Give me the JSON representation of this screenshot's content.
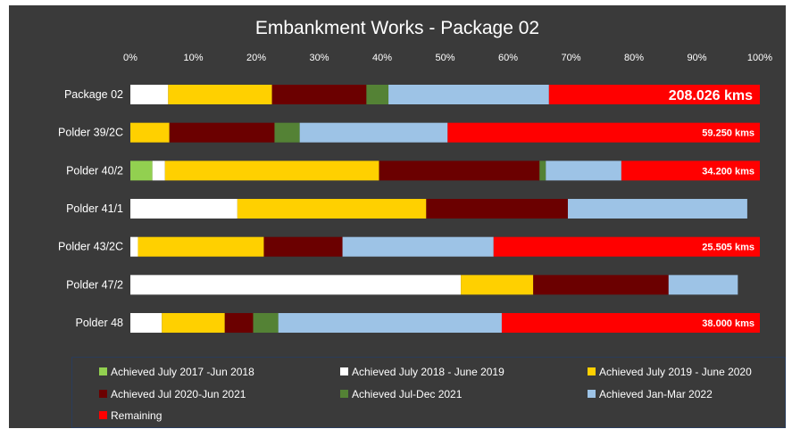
{
  "chart_data": {
    "type": "bar",
    "orientation": "horizontal",
    "stacked": true,
    "title": "Embankment Works - Package 02",
    "xlabel": "",
    "ylabel": "",
    "xlim": [
      0,
      100
    ],
    "x_ticks": [
      "0%",
      "10%",
      "20%",
      "30%",
      "40%",
      "50%",
      "60%",
      "70%",
      "80%",
      "90%",
      "100%"
    ],
    "grid": false,
    "legend_position": "bottom",
    "categories": [
      "Package 02",
      "Polder 39/2C",
      "Polder 40/2",
      "Polder 41/1",
      "Polder 43/2C",
      "Polder 47/2",
      "Polder 48"
    ],
    "series": [
      {
        "name": "Achieved July 2017 -Jun 2018",
        "color": "#92d050",
        "values": [
          0,
          0,
          3.5,
          0,
          0,
          0,
          0
        ]
      },
      {
        "name": "Achieved  July 2018 - June 2019",
        "color": "#ffffff",
        "values": [
          6,
          0,
          2,
          17,
          1.2,
          52.5,
          5
        ]
      },
      {
        "name": "Achieved  July 2019 - June 2020",
        "color": "#ffd000",
        "values": [
          16.5,
          6.2,
          34,
          30,
          20,
          11.5,
          10
        ]
      },
      {
        "name": "Achieved Jul 2020-Jun 2021",
        "color": "#6b0000",
        "values": [
          15,
          16.7,
          25.5,
          22.5,
          12.5,
          21.5,
          4.5
        ]
      },
      {
        "name": "Achieved Jul-Dec 2021",
        "color": "#548235",
        "values": [
          3.5,
          4,
          1,
          0,
          0,
          0,
          4
        ]
      },
      {
        "name": "Achieved Jan-Mar 2022",
        "color": "#9dc3e6",
        "values": [
          25.5,
          23.5,
          12,
          28.5,
          24,
          11,
          35.5
        ]
      },
      {
        "name": "Remaining",
        "color": "#ff0000",
        "values": [
          33.5,
          49.6,
          22,
          0,
          42.3,
          0,
          41
        ]
      }
    ],
    "data_labels": [
      "208.026 kms",
      "59.250 kms",
      "34.200 kms",
      "",
      "25.505 kms",
      "",
      "38.000 kms"
    ]
  }
}
